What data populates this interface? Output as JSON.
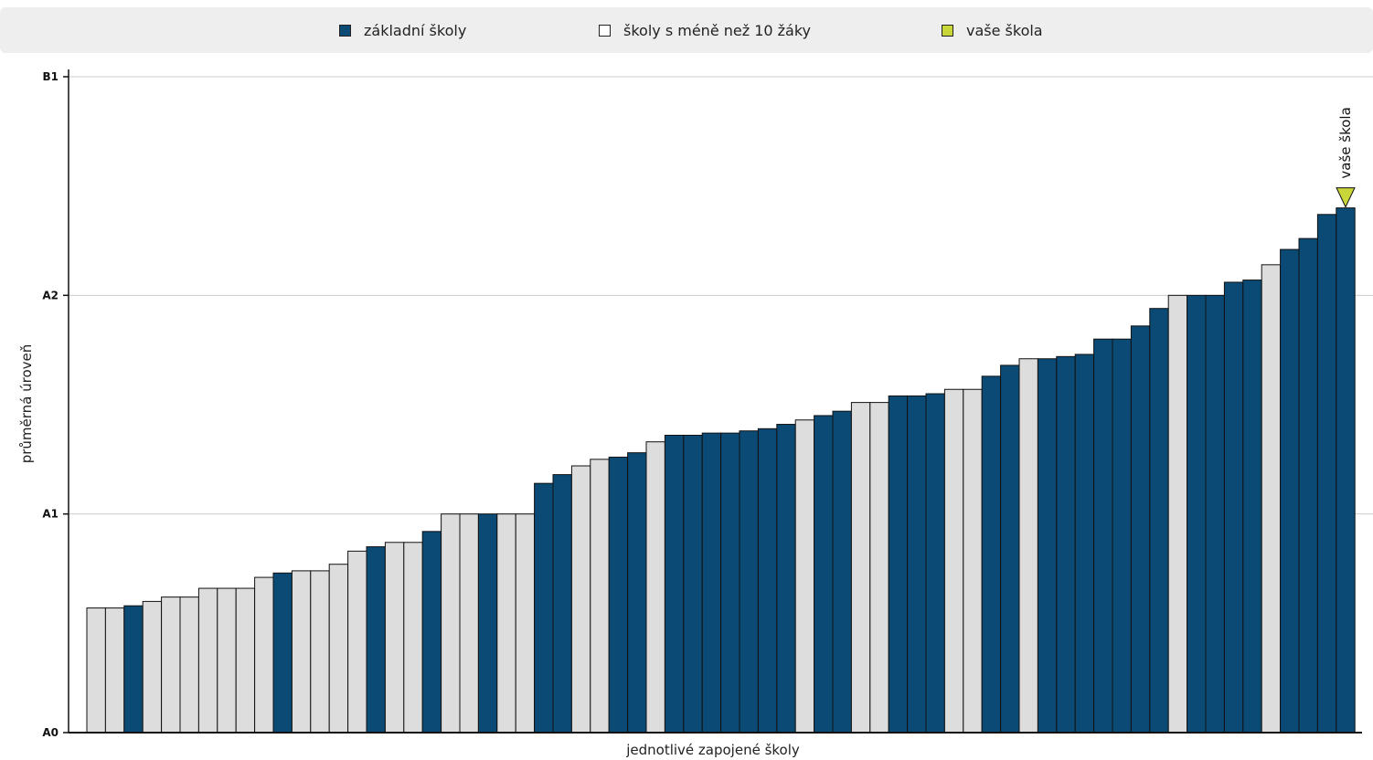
{
  "legend": {
    "items": [
      {
        "label": "základní školy",
        "color": "#0b4a75"
      },
      {
        "label": "školy s méně než 10 žáky",
        "color": "#dddddd"
      },
      {
        "label": "vaše škola",
        "color": "#c9d63a"
      }
    ]
  },
  "chart_data": {
    "type": "bar",
    "xlabel": "jednotlivé zapojené školy",
    "ylabel": "průměrná úroveň",
    "y_ticks": [
      "A0",
      "A1",
      "A2",
      "B1"
    ],
    "ylim": [
      0,
      3
    ],
    "grid": true,
    "legend_position": "top",
    "series_colors": {
      "regular": "#0b4a75",
      "small": "#dddddd",
      "highlight": "#c9d63a"
    },
    "marker": {
      "label": "vaše škola",
      "bar_index": 67
    },
    "values": [
      0.57,
      0.57,
      0.58,
      0.6,
      0.62,
      0.62,
      0.66,
      0.66,
      0.66,
      0.71,
      0.73,
      0.74,
      0.74,
      0.77,
      0.83,
      0.85,
      0.87,
      0.87,
      0.92,
      1.0,
      1.0,
      1.0,
      1.0,
      1.0,
      1.14,
      1.18,
      1.22,
      1.25,
      1.26,
      1.28,
      1.33,
      1.36,
      1.36,
      1.37,
      1.37,
      1.38,
      1.39,
      1.41,
      1.43,
      1.45,
      1.47,
      1.51,
      1.51,
      1.54,
      1.54,
      1.55,
      1.57,
      1.57,
      1.63,
      1.68,
      1.71,
      1.71,
      1.72,
      1.73,
      1.8,
      1.8,
      1.86,
      1.94,
      2.0,
      2.0,
      2.0,
      2.06,
      2.07,
      2.14,
      2.21,
      2.26,
      2.37,
      2.4
    ],
    "bar_types": [
      "small",
      "small",
      "regular",
      "small",
      "small",
      "small",
      "small",
      "small",
      "small",
      "small",
      "regular",
      "small",
      "small",
      "small",
      "small",
      "regular",
      "small",
      "small",
      "regular",
      "small",
      "small",
      "regular",
      "small",
      "small",
      "regular",
      "regular",
      "small",
      "small",
      "regular",
      "regular",
      "small",
      "regular",
      "regular",
      "regular",
      "regular",
      "regular",
      "regular",
      "regular",
      "small",
      "regular",
      "regular",
      "small",
      "small",
      "regular",
      "regular",
      "regular",
      "small",
      "small",
      "regular",
      "regular",
      "small",
      "regular",
      "regular",
      "regular",
      "regular",
      "regular",
      "regular",
      "regular",
      "small",
      "regular",
      "regular",
      "regular",
      "regular",
      "small",
      "regular",
      "regular",
      "regular",
      "regular"
    ]
  }
}
